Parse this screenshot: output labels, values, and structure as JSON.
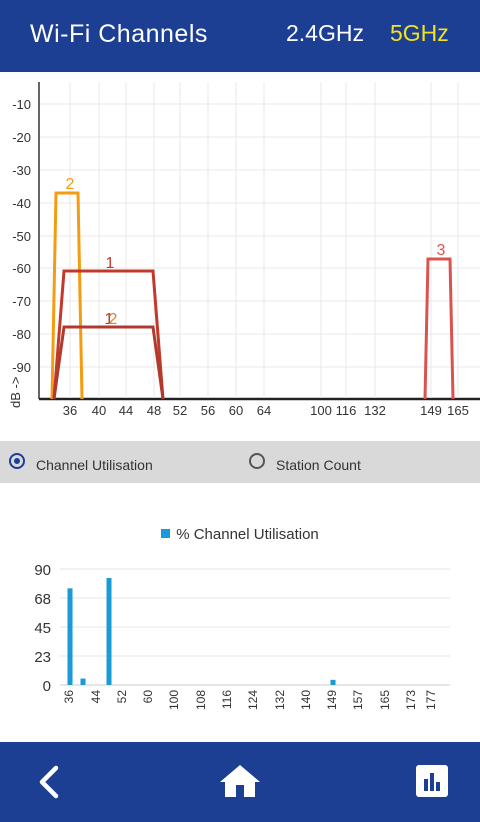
{
  "header": {
    "title": "Wi-Fi Channels",
    "band_24": "2.4GHz",
    "band_5": "5GHz",
    "colors": {
      "bar": "#1c3f94",
      "band_inactive": "#ffffff",
      "band_active": "#f2e224"
    }
  },
  "signal_chart": {
    "ylabel": "dB ->",
    "y_ticks": [
      "-10",
      "-20",
      "-30",
      "-40",
      "-50",
      "-60",
      "-70",
      "-80",
      "-90"
    ],
    "x_ticks": [
      "36",
      "40",
      "44",
      "48",
      "52",
      "56",
      "60",
      "64",
      "100",
      "116",
      "132",
      "149",
      "165"
    ],
    "networks": [
      {
        "label": "2",
        "color": "#f39c12",
        "db": -37
      },
      {
        "label": "1",
        "color": "#c0392b",
        "db": -61
      },
      {
        "label": "1",
        "color": "#b03a2e",
        "db": -78
      },
      {
        "label": "2",
        "color": "#e67e22",
        "db": -78
      },
      {
        "label": "3",
        "color": "#d9534f",
        "db": -57
      }
    ]
  },
  "toggle": {
    "option_1": "Channel Utilisation",
    "option_2": "Station Count",
    "selected": "Channel Utilisation"
  },
  "chart_data": {
    "type": "bar",
    "legend": "% Channel Utilisation",
    "y_ticks": [
      "90",
      "68",
      "45",
      "23",
      "0"
    ],
    "ylim": [
      0,
      90
    ],
    "categories": [
      "36",
      "44",
      "52",
      "60",
      "100",
      "108",
      "116",
      "124",
      "132",
      "140",
      "149",
      "157",
      "165",
      "173",
      "177"
    ],
    "bars": [
      {
        "channel": "36",
        "value": 75
      },
      {
        "channel": "40",
        "value": 5
      },
      {
        "channel": "48",
        "value": 83
      },
      {
        "channel": "149",
        "value": 4
      }
    ],
    "color": "#1a9ad6"
  },
  "footer": {
    "back": "back-icon",
    "home": "home-icon",
    "stats": "bar-chart-icon"
  }
}
